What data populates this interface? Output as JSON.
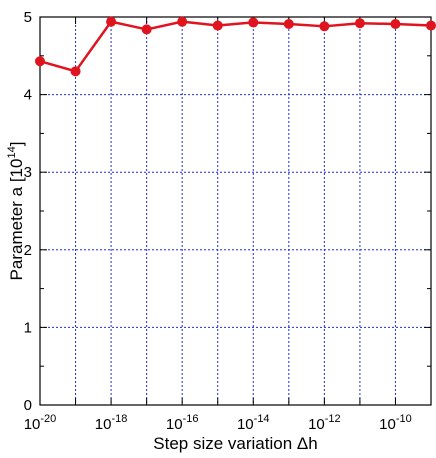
{
  "chart_data": {
    "type": "line",
    "xscale": "log",
    "x": [
      1e-20,
      1e-19,
      1e-18,
      1e-17,
      1e-16,
      1e-15,
      1e-14,
      1e-13,
      1e-12,
      1e-11,
      1e-10,
      1e-09
    ],
    "series": [
      {
        "values": [
          4.43,
          4.3,
          4.94,
          4.84,
          4.94,
          4.89,
          4.93,
          4.91,
          4.88,
          4.92,
          4.91,
          4.89
        ],
        "color": "#e0141e"
      }
    ],
    "xlim": [
      1e-20,
      1e-09
    ],
    "ylim": [
      0,
      5
    ],
    "grid": true,
    "x_major_ticks": [
      {
        "value": 1e-20,
        "base": "10",
        "exp": "-20"
      },
      {
        "value": 1e-18,
        "base": "10",
        "exp": "-18"
      },
      {
        "value": 1e-16,
        "base": "10",
        "exp": "-16"
      },
      {
        "value": 1e-14,
        "base": "10",
        "exp": "-14"
      },
      {
        "value": 1e-12,
        "base": "10",
        "exp": "-12"
      },
      {
        "value": 1e-10,
        "base": "10",
        "exp": "-10"
      }
    ],
    "y_ticks": [
      "0",
      "1",
      "2",
      "3",
      "4",
      "5"
    ],
    "xlabel": "Step size variation Δh",
    "ylabel_main": "Parameter a [10",
    "ylabel_exp": "14",
    "ylabel_end": "]",
    "grid_color": "#1f2fd6"
  }
}
